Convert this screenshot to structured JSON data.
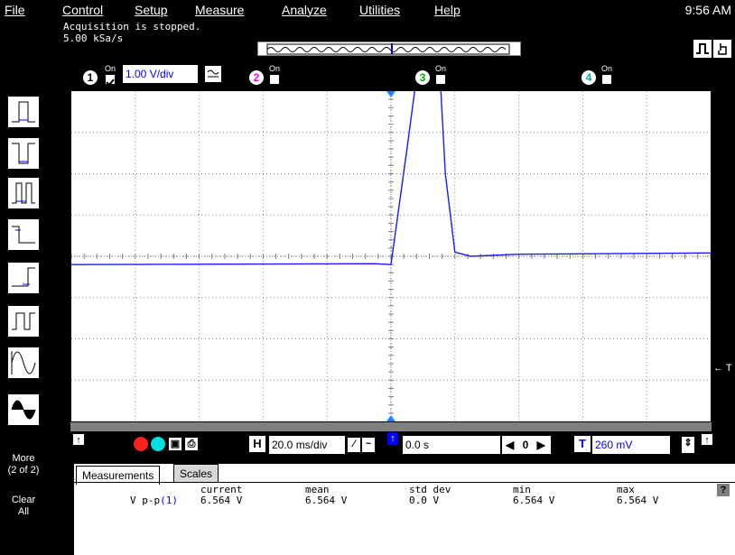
{
  "menu": {
    "file": "File",
    "control": "Control",
    "setup": "Setup",
    "measure": "Measure",
    "analyze": "Analyze",
    "utilities": "Utilities",
    "help": "Help",
    "clock": "9:56 AM"
  },
  "status": {
    "acquisition": "Acquisition is stopped.",
    "sample_rate": "5.00 kSa/s"
  },
  "channels": [
    {
      "num": "1",
      "on": "On",
      "scale": "1.00 V/div",
      "color": "#0000ff"
    },
    {
      "num": "2",
      "on": "On",
      "color": "#ff00ff"
    },
    {
      "num": "3",
      "on": "On",
      "color": "#00ff00"
    },
    {
      "num": "4",
      "on": "On",
      "color": "#00ffff"
    }
  ],
  "timebase": {
    "scale": "20.0 ms/div",
    "delay": "0.0 s",
    "delay_value": "0",
    "trigger_level": "260 mV"
  },
  "left": {
    "more": "More",
    "more_page": "(2 of 2)",
    "clear": "Clear",
    "all": "All"
  },
  "measurements": {
    "tab_measurements": "Measurements",
    "tab_scales": "Scales",
    "headers": [
      "current",
      "mean",
      "std dev",
      "min",
      "max"
    ],
    "row_label": "V p-p",
    "row_channel": "(1)",
    "values": [
      "6.564 V",
      "6.564 V",
      "0.0 V",
      "6.564 V",
      "6.564 V"
    ],
    "help": "?"
  },
  "marker": {
    "trigger_arrow": "← T"
  },
  "chart_data": {
    "type": "line",
    "x": [
      -0.1,
      -0.005,
      0.0,
      0.005,
      0.01,
      0.014,
      0.017,
      0.02,
      0.025,
      0.04,
      0.1
    ],
    "series": [
      {
        "values": [
          -0.2,
          -0.18,
          -0.2,
          2.6,
          5.5,
          6.3,
          2.0,
          0.1,
          0.0,
          0.05,
          0.08
        ]
      }
    ],
    "xlim": [
      -0.1,
      0.1
    ],
    "ylim": [
      -4,
      4
    ],
    "grid": true,
    "colors": {
      "trace": "#1a1aff",
      "grid": "#808080"
    }
  }
}
